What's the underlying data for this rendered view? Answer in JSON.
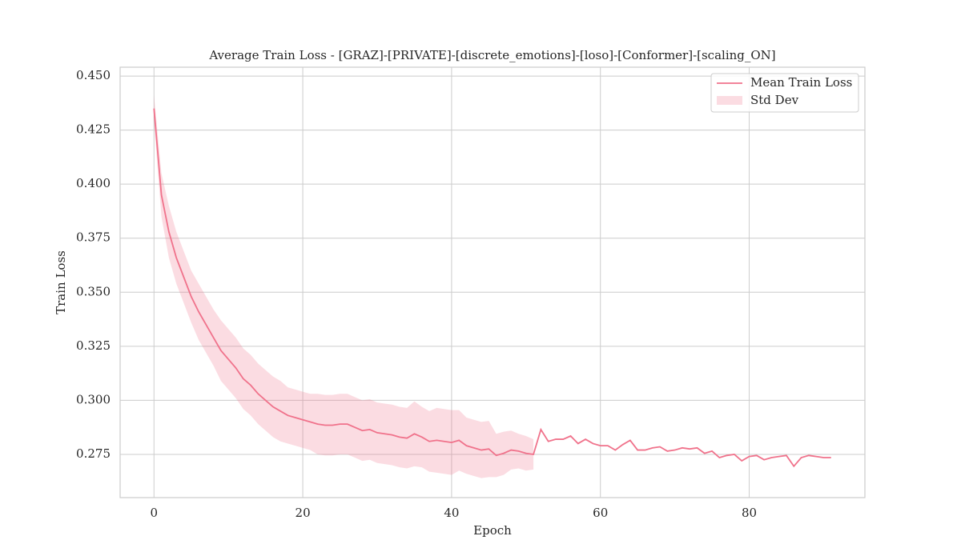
{
  "chart_data": {
    "type": "line",
    "title": "Average Train Loss - [GRAZ]-[PRIVATE]-[discrete_emotions]-[loso]-[Conformer]-[scaling_ON]",
    "x_label": "Epoch",
    "y_label": "Train Loss",
    "x": [
      0,
      1,
      2,
      3,
      4,
      5,
      6,
      7,
      8,
      9,
      10,
      11,
      12,
      13,
      14,
      15,
      16,
      17,
      18,
      19,
      20,
      21,
      22,
      23,
      24,
      25,
      26,
      27,
      28,
      29,
      30,
      31,
      32,
      33,
      34,
      35,
      36,
      37,
      38,
      39,
      40,
      41,
      42,
      43,
      44,
      45,
      46,
      47,
      48,
      49,
      50,
      51,
      52,
      53,
      54,
      55,
      56,
      57,
      58,
      59,
      60,
      61,
      62,
      63,
      64,
      65,
      66,
      67,
      68,
      69,
      70,
      71,
      72,
      73,
      74,
      75,
      76,
      77,
      78,
      79,
      80,
      81,
      82,
      83,
      84,
      85,
      86,
      87,
      88,
      89,
      90,
      91
    ],
    "series": [
      {
        "name": "Mean Train Loss",
        "color": "#f0728b",
        "values": [
          0.435,
          0.395,
          0.378,
          0.366,
          0.357,
          0.348,
          0.341,
          0.335,
          0.329,
          0.323,
          0.319,
          0.315,
          0.31,
          0.307,
          0.303,
          0.3,
          0.297,
          0.295,
          0.293,
          0.292,
          0.291,
          0.29,
          0.289,
          0.2885,
          0.2885,
          0.289,
          0.289,
          0.2875,
          0.286,
          0.2865,
          0.285,
          0.2845,
          0.284,
          0.283,
          0.2825,
          0.2845,
          0.283,
          0.281,
          0.2815,
          0.281,
          0.2805,
          0.2815,
          0.279,
          0.278,
          0.277,
          0.2775,
          0.2745,
          0.2755,
          0.277,
          0.2765,
          0.2755,
          0.275,
          0.2865,
          0.281,
          0.282,
          0.282,
          0.2835,
          0.28,
          0.282,
          0.28,
          0.279,
          0.279,
          0.277,
          0.2795,
          0.2815,
          0.277,
          0.277,
          0.278,
          0.2785,
          0.2765,
          0.277,
          0.278,
          0.2775,
          0.278,
          0.2755,
          0.2765,
          0.2735,
          0.2745,
          0.275,
          0.272,
          0.274,
          0.2745,
          0.2725,
          0.2735,
          0.274,
          0.2745,
          0.2695,
          0.2735,
          0.2745,
          0.274,
          0.2735,
          0.2735
        ]
      },
      {
        "name": "Std Dev",
        "color": "#f0728b",
        "values": [
          0.006,
          0.01,
          0.012,
          0.012,
          0.012,
          0.012,
          0.013,
          0.013,
          0.013,
          0.014,
          0.014,
          0.014,
          0.014,
          0.014,
          0.014,
          0.014,
          0.014,
          0.014,
          0.013,
          0.013,
          0.013,
          0.013,
          0.014,
          0.014,
          0.014,
          0.014,
          0.014,
          0.014,
          0.014,
          0.014,
          0.014,
          0.014,
          0.014,
          0.014,
          0.014,
          0.015,
          0.014,
          0.014,
          0.015,
          0.015,
          0.015,
          0.014,
          0.013,
          0.013,
          0.013,
          0.013,
          0.01,
          0.01,
          0.009,
          0.008,
          0.008,
          0.007,
          null,
          null,
          null,
          null,
          null,
          null,
          null,
          null,
          null,
          null,
          null,
          null,
          null,
          null,
          null,
          null,
          null,
          null,
          null,
          null,
          null,
          null,
          null,
          null,
          null,
          null,
          null,
          null,
          null,
          null,
          null,
          null,
          null,
          null,
          null,
          null,
          null,
          null,
          null,
          null
        ]
      }
    ],
    "xlim": [
      -4.55,
      95.55
    ],
    "ylim": [
      0.255,
      0.4541
    ],
    "xticks": [
      0,
      20,
      40,
      60,
      80
    ],
    "yticks": [
      {
        "value": 0.275,
        "label": "0.275"
      },
      {
        "value": 0.3,
        "label": "0.300"
      },
      {
        "value": 0.325,
        "label": "0.325"
      },
      {
        "value": 0.35,
        "label": "0.350"
      },
      {
        "value": 0.375,
        "label": "0.375"
      },
      {
        "value": 0.4,
        "label": "0.400"
      },
      {
        "value": 0.425,
        "label": "0.425"
      },
      {
        "value": 0.45,
        "label": "0.450"
      }
    ],
    "grid": true,
    "legend": "upper right"
  }
}
